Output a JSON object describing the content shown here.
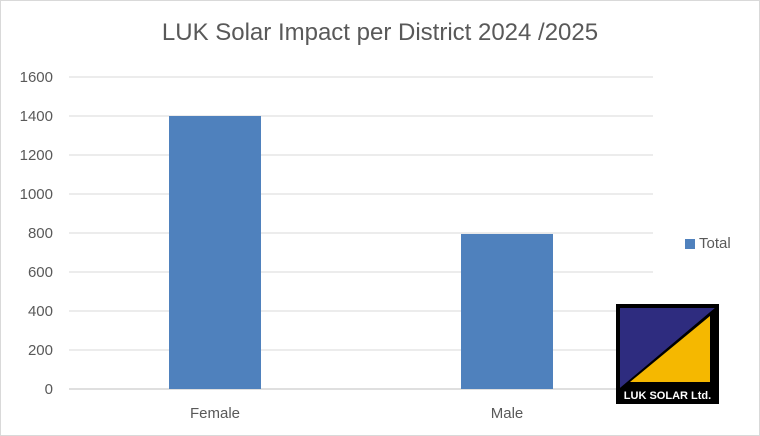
{
  "chart_data": {
    "type": "bar",
    "title": "LUK Solar Impact per District 2024 /2025",
    "categories": [
      "Female",
      "Male"
    ],
    "series": [
      {
        "name": "Total",
        "values": [
          1400,
          795
        ],
        "color": "#4f81bd"
      }
    ],
    "ylim": [
      0,
      1600
    ],
    "yticks": [
      0,
      200,
      400,
      600,
      800,
      1000,
      1200,
      1400,
      1600
    ],
    "grid": true,
    "legend_position": "right"
  },
  "logo": {
    "text": "LUK SOLAR Ltd.",
    "colors": [
      "#2e2c7f",
      "#f5b800",
      "#000000"
    ]
  }
}
